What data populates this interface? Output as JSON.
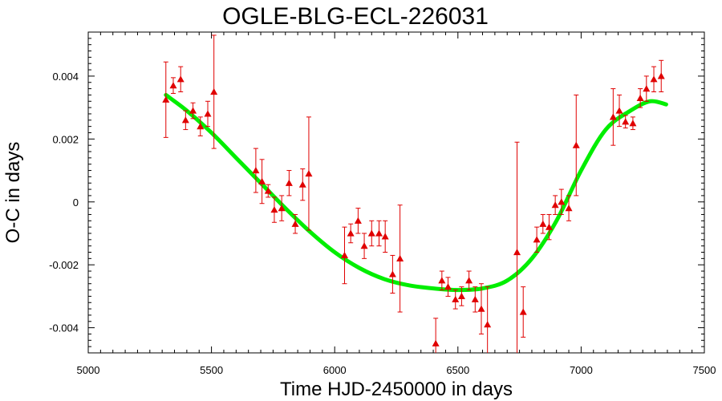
{
  "chart_data": {
    "type": "scatter",
    "title": "OGLE-BLG-ECL-226031",
    "xlabel": "Time HJD-2450000 in days",
    "ylabel": "O-C in days",
    "xlim": [
      5000,
      7500
    ],
    "ylim": [
      -0.0048,
      0.0054
    ],
    "xticks": [
      5000,
      5500,
      6000,
      6500,
      7000,
      7500
    ],
    "xtick_labels": [
      "5000",
      "5500",
      "6000",
      "6500",
      "7000",
      "7500"
    ],
    "yticks": [
      -0.004,
      -0.002,
      0,
      0.002,
      0.004
    ],
    "ytick_labels": [
      "-0.004",
      "-0.002",
      "0",
      "0.002",
      "0.004"
    ],
    "grid": false,
    "legend": "none",
    "series": [
      {
        "kind": "points-with-errors",
        "color": "#e00000",
        "marker": "triangle",
        "points": [
          {
            "x": 5315,
            "y": 0.00325,
            "err": 0.0012
          },
          {
            "x": 5345,
            "y": 0.0037,
            "err": 0.00025
          },
          {
            "x": 5375,
            "y": 0.0039,
            "err": 0.0004
          },
          {
            "x": 5395,
            "y": 0.0026,
            "err": 0.0003
          },
          {
            "x": 5425,
            "y": 0.0029,
            "err": 0.00025
          },
          {
            "x": 5455,
            "y": 0.0024,
            "err": 0.0003
          },
          {
            "x": 5485,
            "y": 0.0028,
            "err": 0.0004
          },
          {
            "x": 5510,
            "y": 0.0035,
            "err": 0.0018
          },
          {
            "x": 5680,
            "y": 0.001,
            "err": 0.0007
          },
          {
            "x": 5705,
            "y": 0.00065,
            "err": 0.0007
          },
          {
            "x": 5730,
            "y": 0.00035,
            "err": 0.0002
          },
          {
            "x": 5755,
            "y": -0.00025,
            "err": 0.0004
          },
          {
            "x": 5785,
            "y": -0.0002,
            "err": 0.0004
          },
          {
            "x": 5815,
            "y": 0.0006,
            "err": 0.0004
          },
          {
            "x": 5840,
            "y": -0.0007,
            "err": 0.0003
          },
          {
            "x": 5870,
            "y": 0.00055,
            "err": 0.0005
          },
          {
            "x": 5895,
            "y": 0.0009,
            "err": 0.0018
          },
          {
            "x": 6040,
            "y": -0.0017,
            "err": 0.0009
          },
          {
            "x": 6065,
            "y": -0.001,
            "err": 0.0003
          },
          {
            "x": 6095,
            "y": -0.0006,
            "err": 0.0004
          },
          {
            "x": 6120,
            "y": -0.0014,
            "err": 0.0004
          },
          {
            "x": 6150,
            "y": -0.001,
            "err": 0.0004
          },
          {
            "x": 6180,
            "y": -0.001,
            "err": 0.0004
          },
          {
            "x": 6205,
            "y": -0.0011,
            "err": 0.0005
          },
          {
            "x": 6235,
            "y": -0.0023,
            "err": 0.0006
          },
          {
            "x": 6265,
            "y": -0.0018,
            "err": 0.0017
          },
          {
            "x": 6410,
            "y": -0.0045,
            "err": 0.0008
          },
          {
            "x": 6435,
            "y": -0.0025,
            "err": 0.0003
          },
          {
            "x": 6460,
            "y": -0.0027,
            "err": 0.0003
          },
          {
            "x": 6490,
            "y": -0.0031,
            "err": 0.0003
          },
          {
            "x": 6515,
            "y": -0.003,
            "err": 0.0003
          },
          {
            "x": 6545,
            "y": -0.0025,
            "err": 0.0003
          },
          {
            "x": 6570,
            "y": -0.0031,
            "err": 0.0004
          },
          {
            "x": 6595,
            "y": -0.0034,
            "err": 0.0008
          },
          {
            "x": 6620,
            "y": -0.0039,
            "err": 0.0012
          },
          {
            "x": 6740,
            "y": -0.0016,
            "err": 0.0035
          },
          {
            "x": 6765,
            "y": -0.0035,
            "err": 0.0008
          },
          {
            "x": 6820,
            "y": -0.0012,
            "err": 0.0004
          },
          {
            "x": 6845,
            "y": -0.0007,
            "err": 0.0003
          },
          {
            "x": 6870,
            "y": -0.0008,
            "err": 0.0004
          },
          {
            "x": 6895,
            "y": -0.0001,
            "err": 0.0003
          },
          {
            "x": 6920,
            "y": 0.0,
            "err": 0.0004
          },
          {
            "x": 6950,
            "y": -0.0002,
            "err": 0.0004
          },
          {
            "x": 6980,
            "y": 0.0018,
            "err": 0.0016
          },
          {
            "x": 7130,
            "y": 0.0027,
            "err": 0.0009
          },
          {
            "x": 7155,
            "y": 0.0029,
            "err": 0.0005
          },
          {
            "x": 7180,
            "y": 0.00255,
            "err": 0.0002
          },
          {
            "x": 7210,
            "y": 0.0025,
            "err": 0.0002
          },
          {
            "x": 7240,
            "y": 0.0033,
            "err": 0.0003
          },
          {
            "x": 7265,
            "y": 0.0036,
            "err": 0.0004
          },
          {
            "x": 7295,
            "y": 0.0039,
            "err": 0.0004
          },
          {
            "x": 7325,
            "y": 0.004,
            "err": 0.0005
          }
        ]
      },
      {
        "kind": "fit-line",
        "color": "#00ee00",
        "points": [
          {
            "x": 5315,
            "y": 0.0034
          },
          {
            "x": 5400,
            "y": 0.0029
          },
          {
            "x": 5500,
            "y": 0.0022
          },
          {
            "x": 5600,
            "y": 0.0014
          },
          {
            "x": 5700,
            "y": 0.0006
          },
          {
            "x": 5800,
            "y": -0.0002
          },
          {
            "x": 5900,
            "y": -0.00095
          },
          {
            "x": 6000,
            "y": -0.0016
          },
          {
            "x": 6100,
            "y": -0.0021
          },
          {
            "x": 6200,
            "y": -0.00245
          },
          {
            "x": 6300,
            "y": -0.00265
          },
          {
            "x": 6400,
            "y": -0.00275
          },
          {
            "x": 6500,
            "y": -0.0028
          },
          {
            "x": 6600,
            "y": -0.00275
          },
          {
            "x": 6700,
            "y": -0.0025
          },
          {
            "x": 6800,
            "y": -0.0018
          },
          {
            "x": 6900,
            "y": -0.0006
          },
          {
            "x": 7000,
            "y": 0.001
          },
          {
            "x": 7100,
            "y": 0.0023
          },
          {
            "x": 7200,
            "y": 0.0029
          },
          {
            "x": 7280,
            "y": 0.0032
          },
          {
            "x": 7345,
            "y": 0.0031
          }
        ]
      }
    ]
  }
}
